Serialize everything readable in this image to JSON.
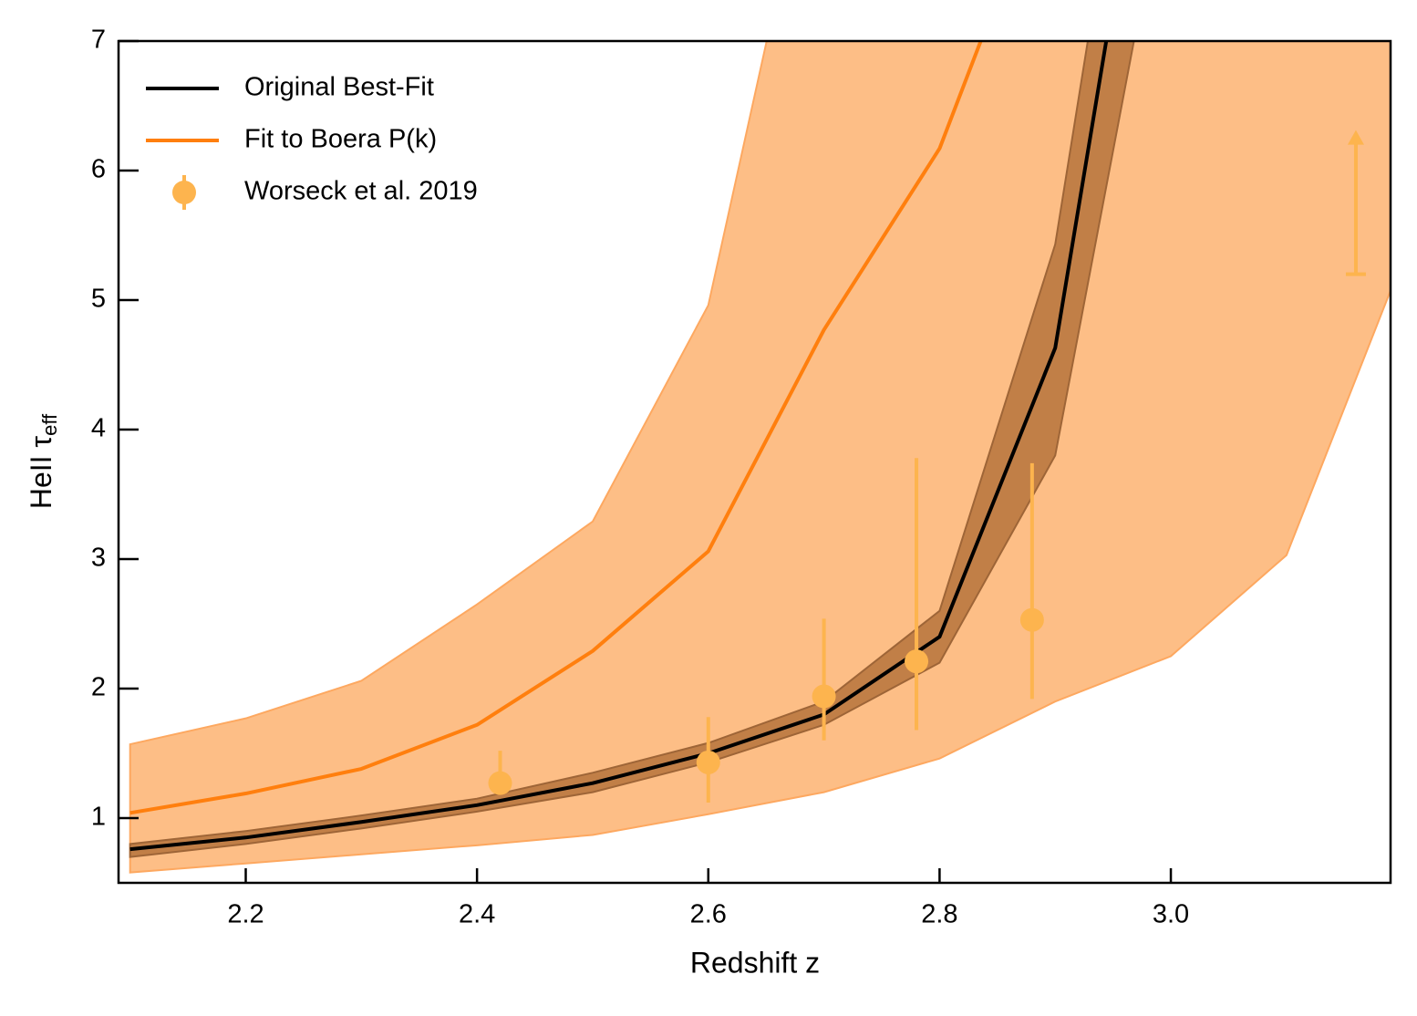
{
  "chart_data": {
    "type": "line",
    "xlabel": "Redshift  z",
    "ylabel": {
      "text": "HeII τ",
      "sub": "eff"
    },
    "xlim": [
      2.09,
      3.19
    ],
    "ylim": [
      0.5,
      7
    ],
    "xticks": [
      2.2,
      2.4,
      2.6,
      2.8,
      {
        "value": 3,
        "label": "3.0"
      }
    ],
    "yticks": [
      1,
      2,
      3,
      4,
      5,
      6,
      7
    ],
    "legend": "upper left",
    "bands": [
      {
        "color": "#fdbe86",
        "edge": "#fda860",
        "x": [
          2.1,
          2.2,
          2.3,
          2.4,
          2.5,
          2.6,
          2.7,
          2.8,
          2.9,
          3.0,
          3.1,
          3.2
        ],
        "lower": [
          0.58,
          0.65,
          0.72,
          0.79,
          0.87,
          1.03,
          1.2,
          1.46,
          1.9,
          2.25,
          3.03,
          5.3
        ],
        "upper": [
          1.57,
          1.77,
          2.06,
          2.65,
          3.29,
          4.96,
          9,
          12,
          15,
          18,
          20,
          22
        ]
      },
      {
        "color": "#c17f47",
        "edge": "#9e6537",
        "x": [
          2.1,
          2.2,
          2.3,
          2.4,
          2.5,
          2.6,
          2.7,
          2.8,
          2.9,
          3.0
        ],
        "lower": [
          0.7,
          0.8,
          0.92,
          1.05,
          1.2,
          1.43,
          1.72,
          2.2,
          3.8,
          8.5
        ],
        "upper": [
          0.8,
          0.9,
          1.02,
          1.15,
          1.35,
          1.58,
          1.9,
          2.6,
          5.43,
          11
        ]
      }
    ],
    "series": [
      {
        "name": "Original Best-Fit",
        "color": "#000000",
        "x": [
          2.1,
          2.2,
          2.3,
          2.4,
          2.5,
          2.6,
          2.7,
          2.8,
          2.9,
          3.0
        ],
        "values": [
          0.76,
          0.85,
          0.97,
          1.1,
          1.27,
          1.5,
          1.8,
          2.4,
          4.63,
          10
        ]
      },
      {
        "name": "Fit to Boera P(k)",
        "color": "#ff7f0e",
        "x": [
          2.1,
          2.2,
          2.3,
          2.4,
          2.5,
          2.6,
          2.7,
          2.8,
          2.9
        ],
        "values": [
          1.04,
          1.19,
          1.38,
          1.72,
          2.29,
          3.06,
          4.77,
          6.17,
          8.5
        ]
      }
    ],
    "points": {
      "name": "Worseck et al. 2019",
      "color": "#fdb44e",
      "x": [
        2.42,
        2.6,
        2.7,
        2.78,
        2.88
      ],
      "values": [
        1.27,
        1.43,
        1.94,
        2.21,
        2.53
      ],
      "lower": [
        1.2,
        1.12,
        1.6,
        1.68,
        1.92
      ],
      "upper": [
        1.52,
        1.78,
        2.54,
        3.78,
        3.74
      ]
    },
    "lower_limits": {
      "x": [
        3.16
      ],
      "values": [
        5.2
      ]
    }
  }
}
